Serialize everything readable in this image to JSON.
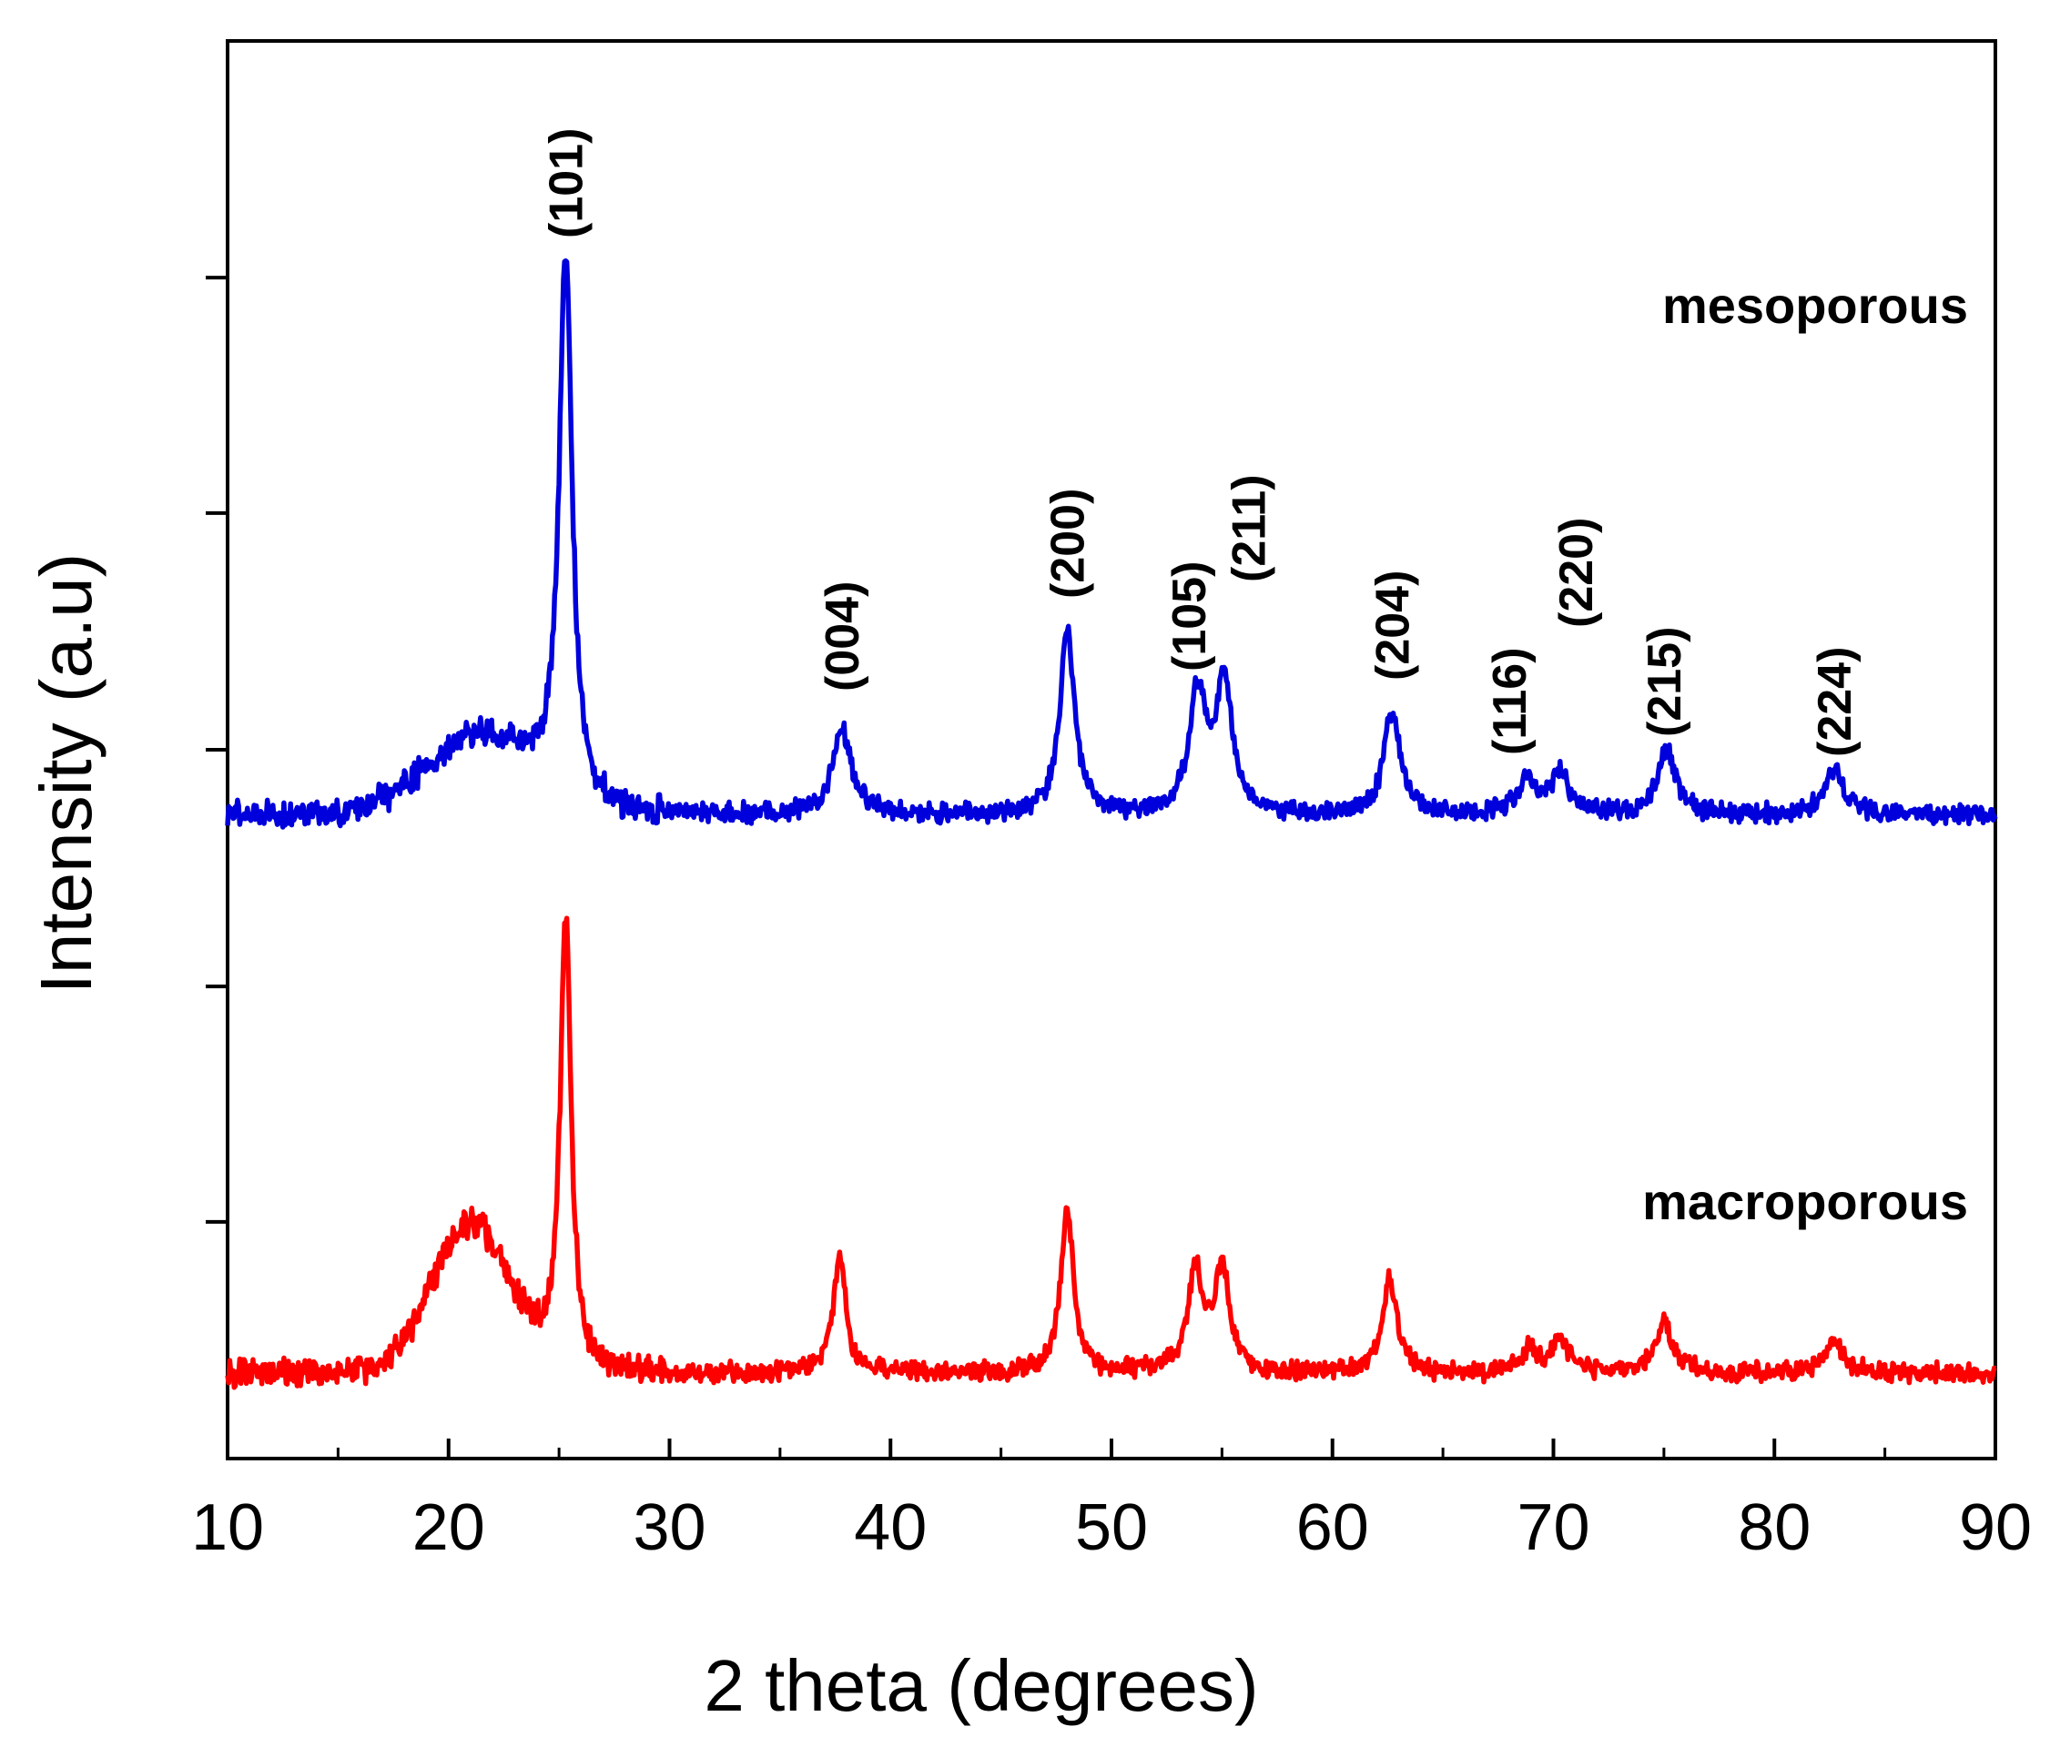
{
  "chart_data": {
    "type": "line",
    "title": "",
    "xlabel": "2 theta (degrees)",
    "ylabel": "Intensity (a.u)",
    "xlim": [
      10,
      90
    ],
    "ylim": [
      0,
      100
    ],
    "xticks": [
      10,
      20,
      30,
      40,
      50,
      60,
      70,
      80,
      90
    ],
    "x_tick_labels": [
      "10",
      "20",
      "30",
      "40",
      "50",
      "60",
      "70",
      "80",
      "90"
    ],
    "grid": false,
    "series": [
      {
        "name": "mesoporous",
        "label": "mesoporous",
        "color": "#0000dd",
        "baseline": 45.4,
        "peaks": [
          {
            "x": 25.3,
            "height": 38.0,
            "width": 0.35
          },
          {
            "x": 37.8,
            "height": 6.0,
            "width": 0.5
          },
          {
            "x": 48.0,
            "height": 12.8,
            "width": 0.4
          },
          {
            "x": 53.9,
            "height": 8.5,
            "width": 0.45
          },
          {
            "x": 55.1,
            "height": 9.2,
            "width": 0.45
          },
          {
            "x": 62.7,
            "height": 7.1,
            "width": 0.45
          },
          {
            "x": 68.8,
            "height": 2.3,
            "width": 0.5
          },
          {
            "x": 70.3,
            "height": 2.8,
            "width": 0.5
          },
          {
            "x": 75.1,
            "height": 4.4,
            "width": 0.5
          },
          {
            "x": 82.7,
            "height": 3.3,
            "width": 0.5
          }
        ],
        "humps": [
          {
            "x": 21.5,
            "height": 5.5,
            "width": 3.5
          }
        ]
      },
      {
        "name": "macroporous",
        "label": "macroporous",
        "color": "#ff0000",
        "baseline": 6.0,
        "peaks": [
          {
            "x": 25.3,
            "height": 32.0,
            "width": 0.3
          },
          {
            "x": 37.7,
            "height": 8.0,
            "width": 0.35
          },
          {
            "x": 48.0,
            "height": 11.5,
            "width": 0.35
          },
          {
            "x": 53.8,
            "height": 7.0,
            "width": 0.4
          },
          {
            "x": 55.0,
            "height": 7.4,
            "width": 0.4
          },
          {
            "x": 62.6,
            "height": 6.5,
            "width": 0.4
          },
          {
            "x": 68.9,
            "height": 1.6,
            "width": 0.45
          },
          {
            "x": 70.3,
            "height": 2.3,
            "width": 0.45
          },
          {
            "x": 75.0,
            "height": 3.5,
            "width": 0.5
          },
          {
            "x": 82.7,
            "height": 2.3,
            "width": 0.5
          }
        ],
        "humps": [
          {
            "x": 21.0,
            "height": 10.5,
            "width": 2.5
          }
        ]
      }
    ],
    "peak_annotations": [
      {
        "label": "(101)",
        "x": 25.3
      },
      {
        "label": "(004)",
        "x": 37.8
      },
      {
        "label": "(200)",
        "x": 48.0
      },
      {
        "label": "(105)",
        "x": 53.5
      },
      {
        "label": "(211)",
        "x": 56.2
      },
      {
        "label": "(204)",
        "x": 62.7
      },
      {
        "label": "(116)",
        "x": 68.0
      },
      {
        "label": "(220)",
        "x": 71.0
      },
      {
        "label": "(215)",
        "x": 75.0
      },
      {
        "label": "(224)",
        "x": 82.7
      }
    ]
  }
}
